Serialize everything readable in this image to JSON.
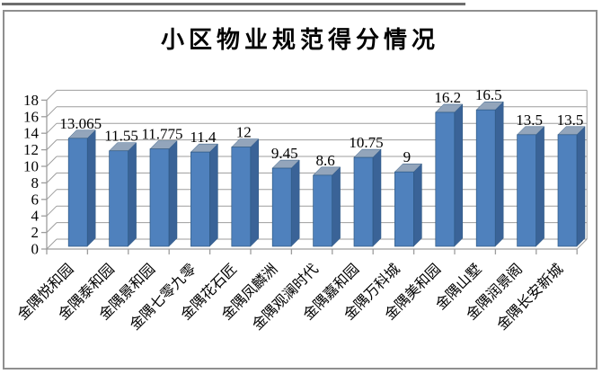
{
  "chart_data": {
    "type": "bar",
    "style": "3d-column",
    "title": "小区物业规范得分情况",
    "categories": [
      "金隅悦和园",
      "金隅泰和园",
      "金隅景和园",
      "金隅七零九零",
      "金隅花石匠",
      "金隅凤麟洲",
      "金隅观澜时代",
      "金隅嘉和园",
      "金隅万科城",
      "金隅美和园",
      "金隅山墅",
      "金隅润景阁",
      "金隅长安新城"
    ],
    "values": [
      13.065,
      11.55,
      11.775,
      11.4,
      12,
      9.45,
      8.6,
      10.75,
      9,
      16.2,
      16.5,
      13.5,
      13.5
    ],
    "value_labels": [
      "13.065",
      "11.55",
      "11.775",
      "11.4",
      "12",
      "9.45",
      "8.6",
      "10.75",
      "9",
      "16.2",
      "16.5",
      "13.5",
      "13.5"
    ],
    "xlabel": "",
    "ylabel": "",
    "ylim": [
      0,
      18
    ],
    "ytick_step": 2,
    "grid": true,
    "legend": null,
    "colors": {
      "bar_front": "#4F81BD",
      "bar_side": "#3A6397",
      "bar_top": "#93A5BB",
      "bar_edge": "#2E5984",
      "gridline": "#9d9d9d",
      "axis": "#9d9d9d",
      "text": "#000000"
    }
  }
}
